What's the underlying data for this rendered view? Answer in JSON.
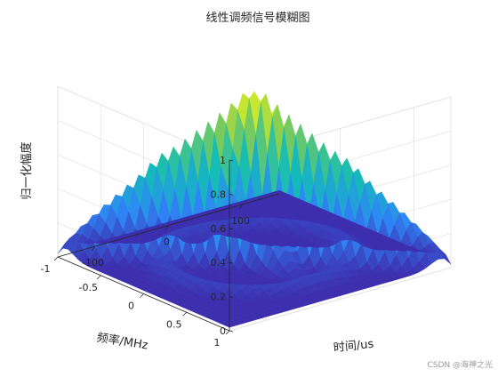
{
  "chart_data": {
    "type": "surface3d",
    "title": "线性调频信号模糊图",
    "xlabel": "时间/us",
    "ylabel": "频率/MHz",
    "zlabel": "归一化幅度",
    "x_ticks": [
      "-100",
      "0",
      "100"
    ],
    "y_ticks": [
      "-1",
      "-0.5",
      "0",
      "0.5",
      "1"
    ],
    "z_ticks": [
      "0",
      "0.2",
      "0.4",
      "0.6",
      "0.8",
      "1"
    ],
    "x_range": [
      -150,
      150
    ],
    "y_range": [
      -1,
      1
    ],
    "z_range": [
      0,
      1
    ],
    "peak": {
      "x": 0,
      "y": 0,
      "z": 1
    },
    "ridge": {
      "from": {
        "x": -150,
        "y": -1
      },
      "to": {
        "x": 150,
        "y": 1
      }
    },
    "colormap": [
      "#3e26a8",
      "#2e87f7",
      "#13bdb7",
      "#80cb58",
      "#f9fb14"
    ],
    "grid": true
  },
  "watermark": "CSDN @海神之光"
}
